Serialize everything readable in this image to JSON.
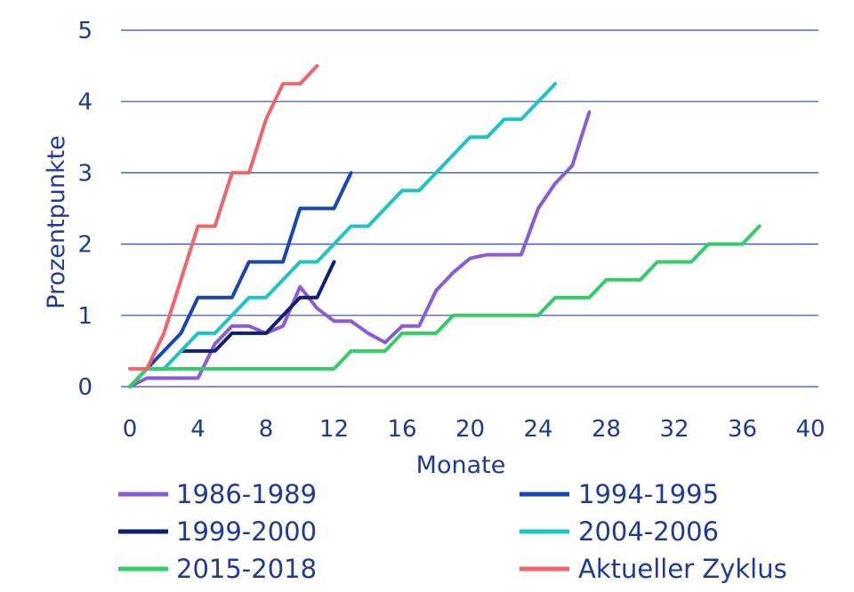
{
  "chart_data": {
    "type": "line",
    "xlabel": "Monate",
    "ylabel": "Prozentpunkte",
    "xlim": [
      0,
      40
    ],
    "ylim": [
      0,
      5
    ],
    "x_ticks": [
      0,
      4,
      8,
      12,
      16,
      20,
      24,
      28,
      32,
      36,
      40
    ],
    "y_ticks": [
      0,
      1,
      2,
      3,
      4,
      5
    ],
    "grid": "horizontal",
    "legend_position": "bottom",
    "series": [
      {
        "name": "1986-1989",
        "color": "#8a5bd6",
        "points": [
          [
            0,
            0
          ],
          [
            1,
            0.12
          ],
          [
            2,
            0.12
          ],
          [
            3,
            0.12
          ],
          [
            4,
            0.12
          ],
          [
            5,
            0.6
          ],
          [
            6,
            0.85
          ],
          [
            7,
            0.85
          ],
          [
            8,
            0.75
          ],
          [
            9,
            0.85
          ],
          [
            10,
            1.4
          ],
          [
            11,
            1.1
          ],
          [
            12,
            0.92
          ],
          [
            13,
            0.92
          ],
          [
            14,
            0.75
          ],
          [
            15,
            0.62
          ],
          [
            16,
            0.85
          ],
          [
            17,
            0.85
          ],
          [
            18,
            1.35
          ],
          [
            19,
            1.6
          ],
          [
            20,
            1.8
          ],
          [
            21,
            1.85
          ],
          [
            22,
            1.85
          ],
          [
            23,
            1.85
          ],
          [
            24,
            2.5
          ],
          [
            25,
            2.85
          ],
          [
            26,
            3.1
          ],
          [
            27,
            3.85
          ]
        ]
      },
      {
        "name": "1994-1995",
        "color": "#1846b4",
        "points": [
          [
            0,
            0
          ],
          [
            1,
            0.25
          ],
          [
            3,
            0.75
          ],
          [
            4,
            1.25
          ],
          [
            6,
            1.25
          ],
          [
            7,
            1.75
          ],
          [
            9,
            1.75
          ],
          [
            10,
            2.5
          ],
          [
            12,
            2.5
          ],
          [
            13,
            3.0
          ]
        ]
      },
      {
        "name": "1999-2000",
        "color": "#0f1f78",
        "points": [
          [
            3,
            0.5
          ],
          [
            5,
            0.5
          ],
          [
            6,
            0.75
          ],
          [
            8,
            0.75
          ],
          [
            10,
            1.25
          ],
          [
            11,
            1.25
          ],
          [
            12,
            1.75
          ]
        ]
      },
      {
        "name": "2004-2006",
        "color": "#1ec3c8",
        "points": [
          [
            0,
            0
          ],
          [
            1,
            0.25
          ],
          [
            2,
            0.25
          ],
          [
            4,
            0.75
          ],
          [
            5,
            0.75
          ],
          [
            7,
            1.25
          ],
          [
            8,
            1.25
          ],
          [
            10,
            1.75
          ],
          [
            11,
            1.75
          ],
          [
            13,
            2.25
          ],
          [
            14,
            2.25
          ],
          [
            16,
            2.75
          ],
          [
            17,
            2.75
          ],
          [
            19,
            3.25
          ],
          [
            20,
            3.5
          ],
          [
            21,
            3.5
          ],
          [
            22,
            3.75
          ],
          [
            23,
            3.75
          ],
          [
            25,
            4.25
          ]
        ]
      },
      {
        "name": "2015-2018",
        "color": "#33cc66",
        "points": [
          [
            0,
            0
          ],
          [
            1,
            0.25
          ],
          [
            12,
            0.25
          ],
          [
            13,
            0.5
          ],
          [
            15,
            0.5
          ],
          [
            16,
            0.75
          ],
          [
            18,
            0.75
          ],
          [
            19,
            1.0
          ],
          [
            24,
            1.0
          ],
          [
            25,
            1.25
          ],
          [
            27,
            1.25
          ],
          [
            28,
            1.5
          ],
          [
            30,
            1.5
          ],
          [
            31,
            1.75
          ],
          [
            33,
            1.75
          ],
          [
            34,
            2.0
          ],
          [
            36,
            2.0
          ],
          [
            37,
            2.25
          ]
        ]
      },
      {
        "name": "Aktueller Zyklus",
        "color": "#f0646a",
        "points": [
          [
            0,
            0.25
          ],
          [
            1,
            0.25
          ],
          [
            2,
            0.75
          ],
          [
            4,
            2.25
          ],
          [
            5,
            2.25
          ],
          [
            6,
            3.0
          ],
          [
            7,
            3.0
          ],
          [
            8,
            3.75
          ],
          [
            9,
            4.25
          ],
          [
            10,
            4.25
          ],
          [
            11,
            4.5
          ]
        ]
      }
    ]
  }
}
